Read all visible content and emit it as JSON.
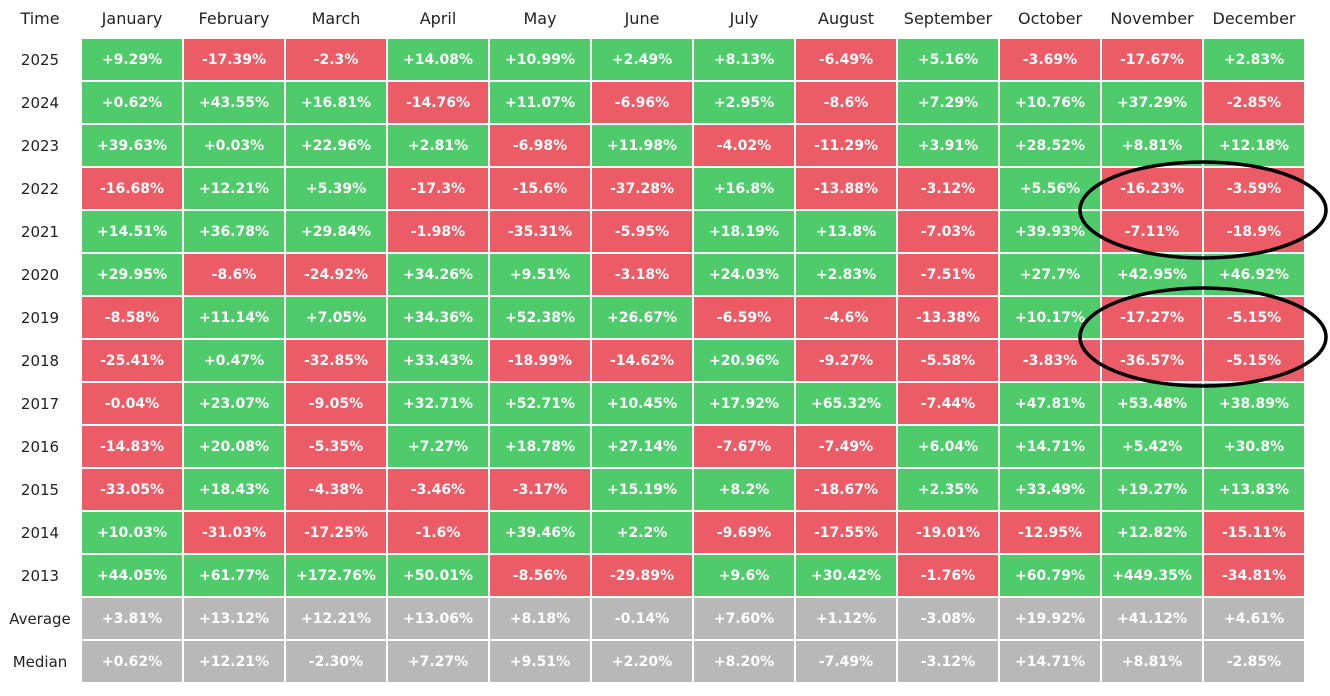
{
  "table": {
    "header": [
      "Time",
      "January",
      "February",
      "March",
      "April",
      "May",
      "June",
      "July",
      "August",
      "September",
      "October",
      "November",
      "December"
    ],
    "colors": {
      "up": "#4fcb6b",
      "down": "#ec5c67",
      "summary": "#b8b8b8"
    },
    "rows": [
      {
        "label": "2025",
        "cells": [
          "+9.29%",
          "-17.39%",
          "-2.3%",
          "+14.08%",
          "+10.99%",
          "+2.49%",
          "+8.13%",
          "-6.49%",
          "+5.16%",
          "-3.69%",
          "-17.67%",
          "+2.83%"
        ]
      },
      {
        "label": "2024",
        "cells": [
          "+0.62%",
          "+43.55%",
          "+16.81%",
          "-14.76%",
          "+11.07%",
          "-6.96%",
          "+2.95%",
          "-8.6%",
          "+7.29%",
          "+10.76%",
          "+37.29%",
          "-2.85%"
        ]
      },
      {
        "label": "2023",
        "cells": [
          "+39.63%",
          "+0.03%",
          "+22.96%",
          "+2.81%",
          "-6.98%",
          "+11.98%",
          "-4.02%",
          "-11.29%",
          "+3.91%",
          "+28.52%",
          "+8.81%",
          "+12.18%"
        ]
      },
      {
        "label": "2022",
        "cells": [
          "-16.68%",
          "+12.21%",
          "+5.39%",
          "-17.3%",
          "-15.6%",
          "-37.28%",
          "+16.8%",
          "-13.88%",
          "-3.12%",
          "+5.56%",
          "-16.23%",
          "-3.59%"
        ]
      },
      {
        "label": "2021",
        "cells": [
          "+14.51%",
          "+36.78%",
          "+29.84%",
          "-1.98%",
          "-35.31%",
          "-5.95%",
          "+18.19%",
          "+13.8%",
          "-7.03%",
          "+39.93%",
          "-7.11%",
          "-18.9%"
        ]
      },
      {
        "label": "2020",
        "cells": [
          "+29.95%",
          "-8.6%",
          "-24.92%",
          "+34.26%",
          "+9.51%",
          "-3.18%",
          "+24.03%",
          "+2.83%",
          "-7.51%",
          "+27.7%",
          "+42.95%",
          "+46.92%"
        ]
      },
      {
        "label": "2019",
        "cells": [
          "-8.58%",
          "+11.14%",
          "+7.05%",
          "+34.36%",
          "+52.38%",
          "+26.67%",
          "-6.59%",
          "-4.6%",
          "-13.38%",
          "+10.17%",
          "-17.27%",
          "-5.15%"
        ]
      },
      {
        "label": "2018",
        "cells": [
          "-25.41%",
          "+0.47%",
          "-32.85%",
          "+33.43%",
          "-18.99%",
          "-14.62%",
          "+20.96%",
          "-9.27%",
          "-5.58%",
          "-3.83%",
          "-36.57%",
          "-5.15%"
        ]
      },
      {
        "label": "2017",
        "cells": [
          "-0.04%",
          "+23.07%",
          "-9.05%",
          "+32.71%",
          "+52.71%",
          "+10.45%",
          "+17.92%",
          "+65.32%",
          "-7.44%",
          "+47.81%",
          "+53.48%",
          "+38.89%"
        ]
      },
      {
        "label": "2016",
        "cells": [
          "-14.83%",
          "+20.08%",
          "-5.35%",
          "+7.27%",
          "+18.78%",
          "+27.14%",
          "-7.67%",
          "-7.49%",
          "+6.04%",
          "+14.71%",
          "+5.42%",
          "+30.8%"
        ]
      },
      {
        "label": "2015",
        "cells": [
          "-33.05%",
          "+18.43%",
          "-4.38%",
          "-3.46%",
          "-3.17%",
          "+15.19%",
          "+8.2%",
          "-18.67%",
          "+2.35%",
          "+33.49%",
          "+19.27%",
          "+13.83%"
        ]
      },
      {
        "label": "2014",
        "cells": [
          "+10.03%",
          "-31.03%",
          "-17.25%",
          "-1.6%",
          "+39.46%",
          "+2.2%",
          "-9.69%",
          "-17.55%",
          "-19.01%",
          "-12.95%",
          "+12.82%",
          "-15.11%"
        ]
      },
      {
        "label": "2013",
        "cells": [
          "+44.05%",
          "+61.77%",
          "+172.76%",
          "+50.01%",
          "-8.56%",
          "-29.89%",
          "+9.6%",
          "+30.42%",
          "-1.76%",
          "+60.79%",
          "+449.35%",
          "-34.81%"
        ]
      }
    ],
    "summary_rows": [
      {
        "label": "Average",
        "cells": [
          "+3.81%",
          "+13.12%",
          "+12.21%",
          "+13.06%",
          "+8.18%",
          "-0.14%",
          "+7.60%",
          "+1.12%",
          "-3.08%",
          "+19.92%",
          "+41.12%",
          "+4.61%"
        ]
      },
      {
        "label": "Median",
        "cells": [
          "+0.62%",
          "+12.21%",
          "-2.30%",
          "+7.27%",
          "+9.51%",
          "+2.20%",
          "+8.20%",
          "-7.49%",
          "-3.12%",
          "+14.71%",
          "+8.81%",
          "-2.85%"
        ]
      }
    ]
  }
}
